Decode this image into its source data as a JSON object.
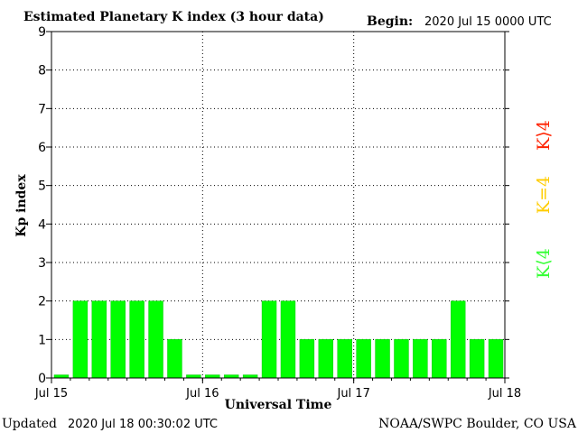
{
  "header": {
    "title": "Estimated Planetary K index (3 hour data)",
    "begin_label": "Begin:",
    "begin_value": "2020 Jul 15 0000 UTC"
  },
  "footer": {
    "updated_label": "Updated",
    "updated_value": "2020 Jul 18 00:30:02 UTC",
    "source": "NOAA/SWPC Boulder, CO USA"
  },
  "legend": {
    "high": {
      "label": "K⟩4",
      "color": "#ff2200"
    },
    "equal": {
      "label": "K=4",
      "color": "#ffcc00"
    },
    "low": {
      "label": "K⟨4",
      "color": "#33ff33"
    }
  },
  "colors": {
    "bar": "#00ff00",
    "bar_edge": "#00c800",
    "axis": "#000000",
    "grid": "#000000"
  },
  "chart_data": {
    "type": "bar",
    "title": "Estimated Planetary K index (3 hour data)",
    "xlabel": "Universal Time",
    "ylabel": "Kp index",
    "ylim": [
      0,
      9
    ],
    "yticks": [
      "0",
      "1",
      "2",
      "3",
      "4",
      "5",
      "6",
      "7",
      "8",
      "9"
    ],
    "xticks": [
      "Jul 15",
      "Jul 16",
      "Jul 17",
      "Jul 18"
    ],
    "grid": true,
    "categories": [
      "Jul 15 00",
      "Jul 15 03",
      "Jul 15 06",
      "Jul 15 09",
      "Jul 15 12",
      "Jul 15 15",
      "Jul 15 18",
      "Jul 15 21",
      "Jul 16 00",
      "Jul 16 03",
      "Jul 16 06",
      "Jul 16 09",
      "Jul 16 12",
      "Jul 16 15",
      "Jul 16 18",
      "Jul 16 21",
      "Jul 17 00",
      "Jul 17 03",
      "Jul 17 06",
      "Jul 17 09",
      "Jul 17 12",
      "Jul 17 15",
      "Jul 17 18",
      "Jul 17 21"
    ],
    "values": [
      0,
      2,
      2,
      2,
      2,
      2,
      1,
      0,
      0,
      0,
      0,
      2,
      2,
      1,
      1,
      1,
      1,
      1,
      1,
      1,
      1,
      2,
      1,
      1
    ]
  }
}
